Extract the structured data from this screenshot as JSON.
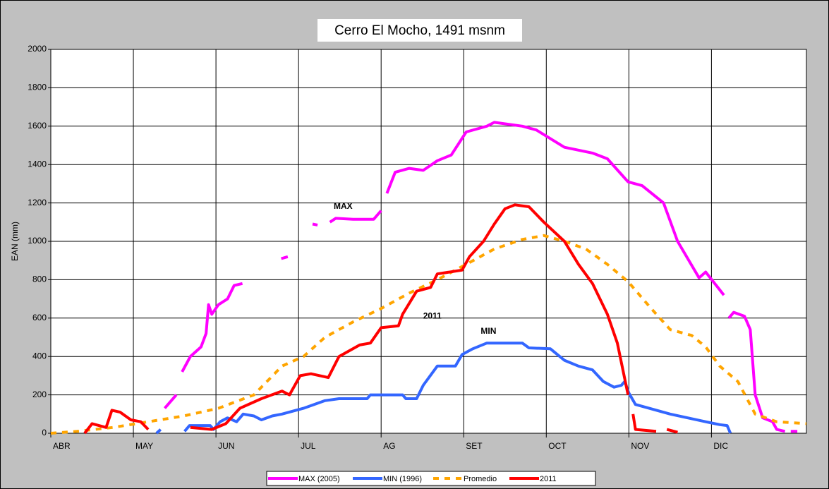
{
  "chart_data": {
    "type": "line",
    "title": "Cerro El Mocho, 1491 msnm",
    "y_label": "EAN (mm)",
    "xlim": [
      0,
      9.15
    ],
    "xticks": [
      {
        "value": 0,
        "label": "ABR"
      },
      {
        "value": 1,
        "label": "MAY"
      },
      {
        "value": 2,
        "label": "JUN"
      },
      {
        "value": 3,
        "label": "JUL"
      },
      {
        "value": 4,
        "label": "AG"
      },
      {
        "value": 5,
        "label": "SET"
      },
      {
        "value": 6,
        "label": "OCT"
      },
      {
        "value": 7,
        "label": "NOV"
      },
      {
        "value": 8,
        "label": "DIC"
      }
    ],
    "ylim": [
      0,
      2000
    ],
    "yticks": [
      0,
      200,
      400,
      600,
      800,
      1000,
      1200,
      1400,
      1600,
      1800,
      2000
    ],
    "grid": true,
    "legend": "bottom",
    "annotations": [
      {
        "text": "MAX",
        "x": 3.54,
        "y": 1180
      },
      {
        "text": "2011",
        "x": 4.62,
        "y": 610
      },
      {
        "text": "MIN",
        "x": 5.3,
        "y": 530
      }
    ],
    "series": [
      {
        "name": "MAX (2005)",
        "color": "#ff00ff",
        "dashed": false,
        "x": [
          1.38,
          1.52,
          1.55,
          1.59,
          1.69,
          1.82,
          1.88,
          1.91,
          1.95,
          2.03,
          2.14,
          2.22,
          2.32,
          2.5,
          2.79,
          2.87,
          3.0,
          3.17,
          3.23,
          3.3,
          3.38,
          3.45,
          3.66,
          3.91,
          4.0,
          4.03,
          4.07,
          4.17,
          4.34,
          4.51,
          4.68,
          4.85,
          5.03,
          5.28,
          5.37,
          5.71,
          5.88,
          6.22,
          6.56,
          6.74,
          6.99,
          7.16,
          7.42,
          7.59,
          7.85,
          7.93,
          8.15,
          8.18,
          8.21,
          8.27,
          8.4,
          8.47,
          8.53,
          8.62,
          8.74,
          8.79,
          8.89,
          8.92,
          8.96,
          9.04
        ],
        "values": [
          130,
          200,
          null,
          320,
          400,
          450,
          520,
          670,
          620,
          670,
          700,
          770,
          780,
          null,
          910,
          920,
          null,
          1090,
          1085,
          null,
          1100,
          1120,
          1115,
          1115,
          1160,
          null,
          1250,
          1360,
          1380,
          1370,
          1420,
          1450,
          1570,
          1600,
          1620,
          1600,
          1580,
          1490,
          1460,
          1430,
          1310,
          1290,
          1200,
          1000,
          810,
          840,
          720,
          null,
          600,
          630,
          610,
          540,
          200,
          80,
          60,
          20,
          10,
          null,
          10,
          10
        ]
      },
      {
        "name": "MIN (1996)",
        "color": "#3366ff",
        "dashed": false,
        "x": [
          1.28,
          1.33,
          1.45,
          1.62,
          1.68,
          1.93,
          1.97,
          2.05,
          2.14,
          2.25,
          2.33,
          2.46,
          2.55,
          2.68,
          2.8,
          3.06,
          3.32,
          3.49,
          3.83,
          3.87,
          4.26,
          4.3,
          4.43,
          4.51,
          4.68,
          4.9,
          4.98,
          5.11,
          5.28,
          5.71,
          5.79,
          6.05,
          6.22,
          6.39,
          6.56,
          6.69,
          6.82,
          6.91,
          6.95,
          7.0,
          7.08,
          7.5,
          7.93,
          8.1,
          8.19,
          8.23
        ],
        "values": [
          0,
          20,
          null,
          10,
          40,
          40,
          20,
          60,
          80,
          60,
          100,
          90,
          70,
          90,
          100,
          130,
          170,
          180,
          180,
          200,
          200,
          180,
          180,
          250,
          350,
          350,
          410,
          440,
          470,
          470,
          445,
          440,
          380,
          350,
          330,
          270,
          240,
          250,
          270,
          210,
          150,
          100,
          60,
          45,
          40,
          0
        ]
      },
      {
        "name": "Promedio",
        "color": "#ffa500",
        "dashed": true,
        "x": [
          0,
          0.32,
          0.75,
          1.18,
          1.61,
          2.03,
          2.46,
          2.8,
          3.06,
          3.32,
          3.66,
          4.0,
          4.34,
          4.68,
          5.03,
          5.37,
          5.71,
          5.97,
          6.22,
          6.48,
          6.74,
          6.99,
          7.25,
          7.5,
          7.76,
          7.93,
          8.1,
          8.32,
          8.53,
          8.79,
          9.15
        ],
        "values": [
          0,
          10,
          30,
          60,
          90,
          130,
          200,
          350,
          400,
          500,
          580,
          650,
          730,
          800,
          880,
          960,
          1010,
          1030,
          1000,
          960,
          880,
          790,
          660,
          540,
          510,
          450,
          350,
          270,
          100,
          60,
          50
        ]
      },
      {
        "name": "2011",
        "color": "#ff0000",
        "dashed": false,
        "x": [
          0.41,
          0.5,
          0.67,
          0.74,
          0.84,
          0.97,
          1.09,
          1.18,
          1.4,
          1.69,
          1.95,
          2.12,
          2.29,
          2.55,
          2.8,
          2.89,
          3.02,
          3.15,
          3.36,
          3.49,
          3.74,
          3.87,
          4.0,
          4.21,
          4.26,
          4.43,
          4.6,
          4.68,
          4.98,
          5.07,
          5.24,
          5.37,
          5.5,
          5.62,
          5.79,
          5.97,
          6.22,
          6.39,
          6.56,
          6.74,
          6.86,
          6.99,
          7.02,
          7.05,
          7.08,
          7.33,
          7.4,
          7.46,
          7.59
        ],
        "values": [
          0,
          50,
          30,
          120,
          110,
          70,
          60,
          20,
          null,
          30,
          20,
          50,
          130,
          180,
          220,
          200,
          300,
          310,
          290,
          400,
          460,
          470,
          550,
          560,
          620,
          740,
          760,
          830,
          850,
          920,
          1000,
          1090,
          1170,
          1190,
          1180,
          1100,
          1000,
          880,
          780,
          620,
          470,
          200,
          null,
          100,
          20,
          10,
          null,
          20,
          5
        ]
      }
    ]
  }
}
